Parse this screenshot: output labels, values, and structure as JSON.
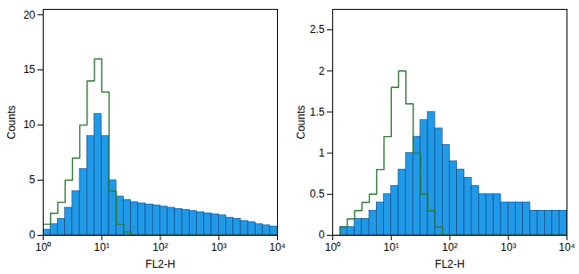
{
  "chart_data": [
    {
      "type": "histogram",
      "xlabel": "FL2-H",
      "ylabel": "Counts",
      "log": "x",
      "grid": false,
      "xlim": [
        1,
        10000
      ],
      "xticks": [
        {
          "value": 1,
          "label": "10⁰"
        },
        {
          "value": 10,
          "label": "10¹"
        },
        {
          "value": 100,
          "label": "10²"
        },
        {
          "value": 1000,
          "label": "10³"
        },
        {
          "value": 10000,
          "label": "10⁴"
        }
      ],
      "ylim": [
        0,
        20.5
      ],
      "yticks": [
        0,
        5,
        10,
        15,
        20
      ],
      "bins": [
        1,
        1.334,
        1.778,
        2.371,
        3.162,
        4.217,
        5.623,
        7.499,
        10,
        13.34,
        17.78,
        23.71,
        31.62,
        42.17,
        56.23,
        74.99,
        100,
        133.4,
        177.8,
        237.1,
        316.2,
        421.7,
        562.3,
        749.9,
        1000,
        1334,
        1778,
        2371,
        3162,
        4217,
        5623,
        7499,
        10000
      ],
      "series": [
        {
          "type": "area",
          "color": "#1f9ae8",
          "values": [
            0.5,
            1,
            1.5,
            2.5,
            4,
            6,
            9,
            11,
            9,
            5,
            3.5,
            3.2,
            3,
            2.9,
            2.8,
            2.7,
            2.6,
            2.5,
            2.4,
            2.3,
            2.2,
            2.1,
            2,
            1.9,
            1.8,
            1.6,
            1.5,
            1.3,
            1.2,
            1,
            0.9,
            0.8
          ]
        },
        {
          "type": "line",
          "color": "#2f7a34",
          "values": [
            1,
            2,
            3,
            5,
            7,
            10,
            14,
            16,
            13,
            4,
            1,
            0.3,
            0,
            0,
            0,
            0,
            0,
            0,
            0,
            0,
            0,
            0,
            0,
            0,
            0,
            0,
            0,
            0,
            0,
            0,
            0,
            0
          ]
        }
      ]
    },
    {
      "type": "histogram",
      "xlabel": "FL2-H",
      "ylabel": "Counts",
      "log": "x",
      "grid": false,
      "xlim": [
        1,
        10000
      ],
      "xticks": [
        {
          "value": 1,
          "label": "10⁰"
        },
        {
          "value": 10,
          "label": "10¹"
        },
        {
          "value": 100,
          "label": "10²"
        },
        {
          "value": 1000,
          "label": "10³"
        },
        {
          "value": 10000,
          "label": "10⁴"
        }
      ],
      "ylim": [
        0,
        2.75
      ],
      "yticks": [
        0,
        0.5,
        1,
        1.5,
        2,
        2.5
      ],
      "bins": [
        1,
        1.334,
        1.778,
        2.371,
        3.162,
        4.217,
        5.623,
        7.499,
        10,
        13.34,
        17.78,
        23.71,
        31.62,
        42.17,
        56.23,
        74.99,
        100,
        133.4,
        177.8,
        237.1,
        316.2,
        421.7,
        562.3,
        749.9,
        1000,
        1334,
        1778,
        2371,
        3162,
        4217,
        5623,
        7499,
        10000
      ],
      "series": [
        {
          "type": "area",
          "color": "#1f9ae8",
          "values": [
            0,
            0.1,
            0.1,
            0.2,
            0.2,
            0.3,
            0.4,
            0.5,
            0.6,
            0.8,
            1.0,
            1.2,
            1.4,
            1.5,
            1.3,
            1.1,
            0.9,
            0.8,
            0.7,
            0.6,
            0.5,
            0.5,
            0.5,
            0.4,
            0.4,
            0.4,
            0.4,
            0.3,
            0.3,
            0.3,
            0.3,
            0.3
          ]
        },
        {
          "type": "line",
          "color": "#2f7a34",
          "values": [
            0,
            0.1,
            0.2,
            0.3,
            0.4,
            0.5,
            0.8,
            1.2,
            1.8,
            2.0,
            1.6,
            1.0,
            0.5,
            0.3,
            0.1,
            0,
            0,
            0,
            0,
            0,
            0,
            0,
            0,
            0,
            0,
            0,
            0,
            0,
            0,
            0,
            0,
            0
          ]
        }
      ]
    }
  ]
}
